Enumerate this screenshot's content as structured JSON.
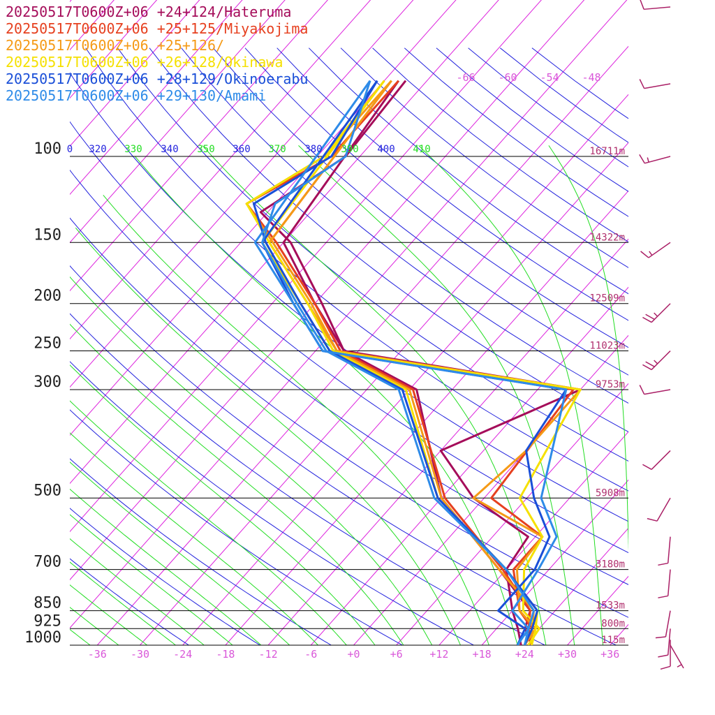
{
  "colors": {
    "isotherm": "#dd22dd",
    "dry_adiabat": "#2222dd",
    "moist_adiabat": "#22dd22",
    "isobar": "#000000",
    "height_label": "#b0306e",
    "temp_label": "#d957d9",
    "wind_barb": "#aa1f66"
  },
  "chart_data": {
    "type": "line",
    "title": "",
    "xlabel": "",
    "ylabel": "",
    "xlim": [
      -42,
      42
    ],
    "ylim_hpa": [
      1000,
      100
    ],
    "y_scale": "log-pressure",
    "grid": true,
    "legend_position": "top-left",
    "pressure_levels": [
      100,
      150,
      200,
      250,
      300,
      500,
      700,
      850,
      925,
      1000
    ],
    "pressure_labels": [
      "100",
      "150",
      "200",
      "250",
      "300",
      "500",
      "700",
      "850",
      "925",
      "1000"
    ],
    "height_labels": [
      "16711m",
      "14322m",
      "12509m",
      "11023m",
      "9753m",
      "5908m",
      "3180m",
      "1533m",
      "800m",
      "115m"
    ],
    "temp_ticks": [
      -36,
      -30,
      -24,
      -18,
      -12,
      -6,
      0,
      6,
      12,
      18,
      24,
      30,
      36
    ],
    "temp_tick_labels": [
      "-36",
      "-30",
      "-24",
      "-18",
      "-12",
      "-6",
      "+0",
      "+6",
      "+12",
      "+18",
      "+24",
      "+30",
      "+36"
    ],
    "upper_isotherm_labels": [
      "-66",
      "-60",
      "-54",
      "-48"
    ],
    "theta_labels": [
      {
        "text": "0",
        "kind": "dry"
      },
      {
        "text": "320",
        "kind": "dry"
      },
      {
        "text": "330",
        "kind": "moist"
      },
      {
        "text": "340",
        "kind": "dry"
      },
      {
        "text": "350",
        "kind": "moist"
      },
      {
        "text": "360",
        "kind": "dry"
      },
      {
        "text": "370",
        "kind": "moist"
      },
      {
        "text": "380",
        "kind": "dry"
      },
      {
        "text": "390",
        "kind": "moist"
      },
      {
        "text": "400",
        "kind": "dry"
      },
      {
        "text": "410",
        "kind": "moist"
      }
    ],
    "series": [
      {
        "name": "20250517T0600Z+06 +24+124/Hateruma",
        "color": "#a50d5a",
        "temperature": [
          [
            1000,
            25
          ],
          [
            925,
            22
          ],
          [
            850,
            20.5
          ],
          [
            700,
            11
          ],
          [
            500,
            -6
          ],
          [
            300,
            -23
          ],
          [
            250,
            -38
          ],
          [
            200,
            -47
          ],
          [
            150,
            -59
          ],
          [
            130,
            -67
          ],
          [
            100,
            -62
          ],
          [
            70,
            -63
          ]
        ],
        "dewpoint": [
          [
            1000,
            23.5
          ],
          [
            925,
            21
          ],
          [
            850,
            18
          ],
          [
            700,
            12
          ],
          [
            600,
            11
          ],
          [
            500,
            -1.5
          ],
          [
            400,
            -12
          ],
          [
            300,
            0
          ],
          [
            250,
            -38
          ],
          [
            200,
            -48
          ],
          [
            150,
            -60
          ],
          [
            70,
            -64
          ]
        ]
      },
      {
        "name": "20250517T0600Z+06 +25+125/Miyakojima",
        "color": "#e6401f",
        "temperature": [
          [
            1000,
            25
          ],
          [
            925,
            22.5
          ],
          [
            850,
            20.5
          ],
          [
            700,
            11.5
          ],
          [
            500,
            -5.5
          ],
          [
            300,
            -23.5
          ],
          [
            250,
            -38.5
          ],
          [
            200,
            -48
          ],
          [
            150,
            -61
          ],
          [
            125,
            -70
          ],
          [
            100,
            -64
          ],
          [
            70,
            -64
          ]
        ],
        "dewpoint": [
          [
            1000,
            24
          ],
          [
            925,
            23
          ],
          [
            850,
            19
          ],
          [
            700,
            13
          ],
          [
            600,
            13
          ],
          [
            500,
            1
          ],
          [
            300,
            -1
          ],
          [
            250,
            -39
          ],
          [
            200,
            -49
          ],
          [
            150,
            -62
          ],
          [
            70,
            -65
          ]
        ]
      },
      {
        "name": "20250517T0600Z+06 +25+126/",
        "color": "#f59a16",
        "temperature": [
          [
            1000,
            25
          ],
          [
            925,
            23
          ],
          [
            850,
            21
          ],
          [
            700,
            11
          ],
          [
            500,
            -6
          ],
          [
            300,
            -24
          ],
          [
            250,
            -39
          ],
          [
            200,
            -48.5
          ],
          [
            150,
            -61.5
          ],
          [
            125,
            -70
          ],
          [
            100,
            -65
          ],
          [
            70,
            -65
          ]
        ],
        "dewpoint": [
          [
            1000,
            24
          ],
          [
            925,
            23.5
          ],
          [
            850,
            19
          ],
          [
            700,
            13.5
          ],
          [
            600,
            13
          ],
          [
            500,
            -1.5
          ],
          [
            400,
            0
          ],
          [
            300,
            0
          ],
          [
            250,
            -39
          ],
          [
            200,
            -49
          ],
          [
            150,
            -62
          ],
          [
            70,
            -65
          ]
        ]
      },
      {
        "name": "20250517T0600Z+06 +26+128/Okinawa",
        "color": "#f5e000",
        "temperature": [
          [
            1000,
            25
          ],
          [
            925,
            23.5
          ],
          [
            850,
            21.5
          ],
          [
            700,
            12
          ],
          [
            500,
            -6.5
          ],
          [
            300,
            -24.5
          ],
          [
            250,
            -39.5
          ],
          [
            200,
            -49
          ],
          [
            150,
            -62
          ],
          [
            125,
            -70
          ],
          [
            100,
            -65
          ],
          [
            70,
            -66
          ]
        ],
        "dewpoint": [
          [
            1000,
            24.5
          ],
          [
            925,
            24
          ],
          [
            850,
            19.5
          ],
          [
            700,
            14.5
          ],
          [
            600,
            13
          ],
          [
            500,
            5
          ],
          [
            300,
            0
          ],
          [
            250,
            -40
          ],
          [
            200,
            -50
          ],
          [
            150,
            -63
          ],
          [
            70,
            -66
          ]
        ]
      },
      {
        "name": "20250517T0600Z+06 +28+129/Okinoerabu",
        "color": "#1a4fd8",
        "temperature": [
          [
            1000,
            24
          ],
          [
            925,
            23
          ],
          [
            850,
            21.5
          ],
          [
            700,
            12
          ],
          [
            500,
            -6.5
          ],
          [
            300,
            -25
          ],
          [
            250,
            -40
          ],
          [
            200,
            -50
          ],
          [
            150,
            -62.5
          ],
          [
            125,
            -69
          ],
          [
            100,
            -64
          ],
          [
            70,
            -67
          ]
        ],
        "dewpoint": [
          [
            1000,
            23
          ],
          [
            925,
            22
          ],
          [
            850,
            16
          ],
          [
            700,
            16
          ],
          [
            600,
            14
          ],
          [
            500,
            7
          ],
          [
            400,
            0
          ],
          [
            300,
            -2
          ],
          [
            250,
            -41
          ],
          [
            200,
            -51
          ],
          [
            150,
            -63
          ],
          [
            70,
            -67
          ]
        ]
      },
      {
        "name": "20250517T0600Z+06 +29+130/Amami",
        "color": "#2e8be8",
        "temperature": [
          [
            1000,
            24
          ],
          [
            925,
            22.5
          ],
          [
            850,
            21
          ],
          [
            700,
            12
          ],
          [
            500,
            -7
          ],
          [
            300,
            -25.5
          ],
          [
            250,
            -40.5
          ],
          [
            200,
            -50.5
          ],
          [
            150,
            -63
          ],
          [
            125,
            -66
          ],
          [
            100,
            -62
          ],
          [
            70,
            -68
          ]
        ],
        "dewpoint": [
          [
            1000,
            23
          ],
          [
            925,
            22.5
          ],
          [
            850,
            18
          ],
          [
            700,
            16.5
          ],
          [
            600,
            15
          ],
          [
            500,
            8
          ],
          [
            300,
            -2
          ],
          [
            250,
            -41
          ],
          [
            200,
            -51
          ],
          [
            150,
            -64
          ],
          [
            70,
            -68
          ]
        ]
      }
    ],
    "wind_barbs": [
      {
        "p": 60,
        "speed_kt": 10,
        "dir_deg": 265
      },
      {
        "p": 80,
        "speed_kt": 10,
        "dir_deg": 260
      },
      {
        "p": 100,
        "speed_kt": 15,
        "dir_deg": 255
      },
      {
        "p": 150,
        "speed_kt": 15,
        "dir_deg": 235
      },
      {
        "p": 200,
        "speed_kt": 25,
        "dir_deg": 225
      },
      {
        "p": 250,
        "speed_kt": 25,
        "dir_deg": 225
      },
      {
        "p": 300,
        "speed_kt": 10,
        "dir_deg": 260
      },
      {
        "p": 400,
        "speed_kt": 10,
        "dir_deg": 225
      },
      {
        "p": 500,
        "speed_kt": 10,
        "dir_deg": 210
      },
      {
        "p": 600,
        "speed_kt": 10,
        "dir_deg": 185
      },
      {
        "p": 700,
        "speed_kt": 10,
        "dir_deg": 185
      },
      {
        "p": 850,
        "speed_kt": 10,
        "dir_deg": 190
      },
      {
        "p": 925,
        "speed_kt": 10,
        "dir_deg": 185
      },
      {
        "p": 975,
        "speed_kt": 10,
        "dir_deg": 180
      },
      {
        "p": 1000,
        "speed_kt": 5,
        "dir_deg": 150
      }
    ]
  }
}
